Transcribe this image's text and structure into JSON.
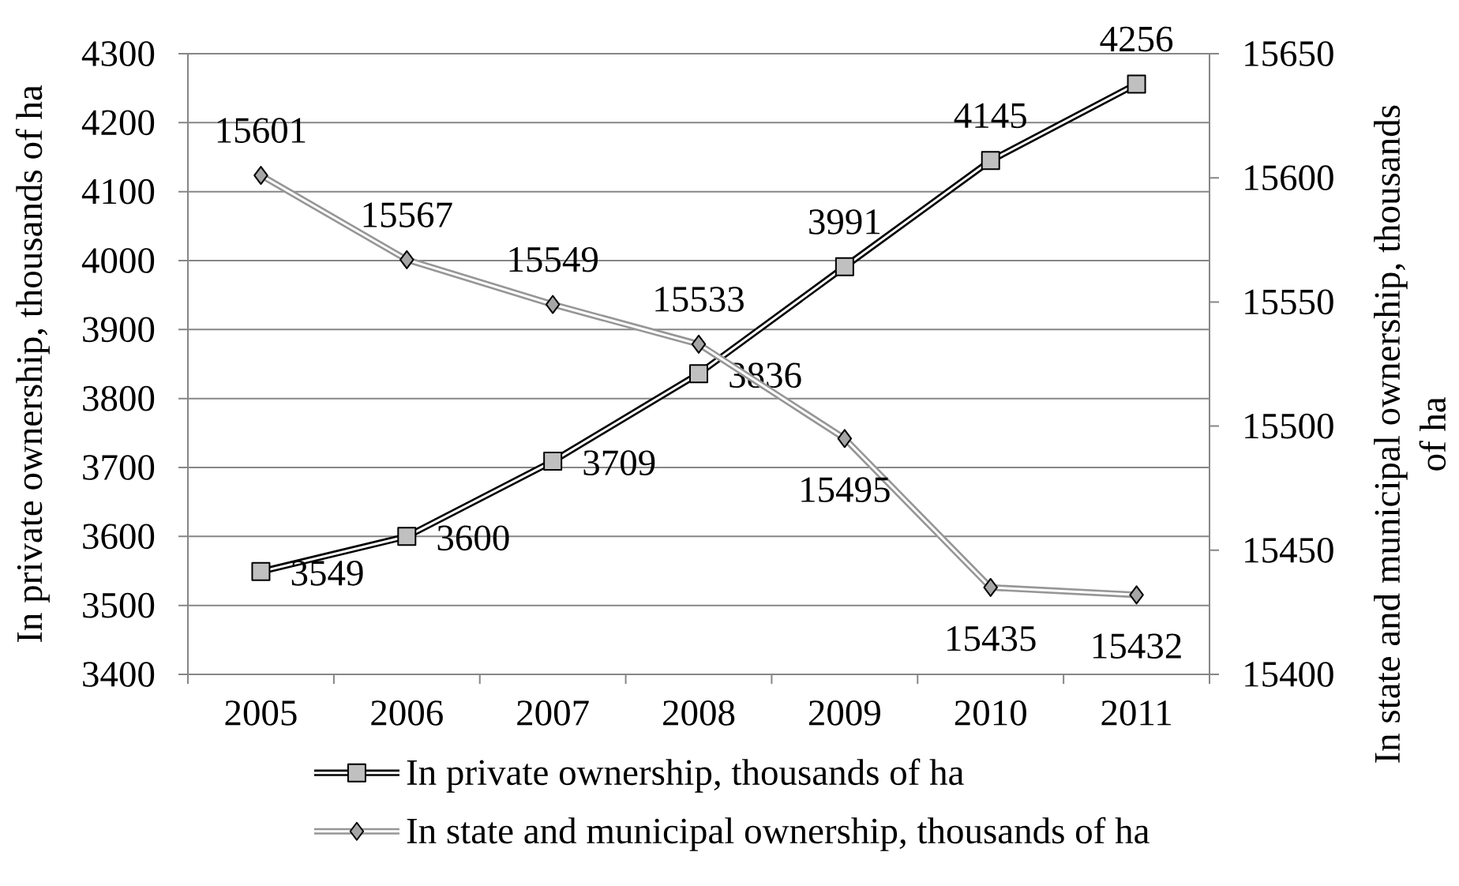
{
  "chart_data": {
    "type": "line",
    "categories": [
      "2005",
      "2006",
      "2007",
      "2008",
      "2009",
      "2010",
      "2011"
    ],
    "ylabel": "In private ownership, thousands of ha",
    "y2label": "In state and municipal ownership, thousands of ha",
    "ylim": [
      3400,
      4300
    ],
    "yticks": [
      3400,
      3500,
      3600,
      3700,
      3800,
      3900,
      4000,
      4100,
      4200,
      4300
    ],
    "y2lim": [
      15400,
      15650
    ],
    "y2ticks": [
      15400,
      15450,
      15500,
      15550,
      15600,
      15650
    ],
    "series": [
      {
        "name": "In private ownership, thousands of ha",
        "color": "#000000",
        "marker": "square",
        "values": [
          3549,
          3600,
          3709,
          3836,
          3991,
          4145,
          4256
        ]
      },
      {
        "name": "In state and municipal ownership, thousands of ha",
        "color": "#969696",
        "marker": "diamond",
        "axis": "y2",
        "values": [
          15601,
          15567,
          15549,
          15533,
          15495,
          15435,
          15432
        ]
      }
    ],
    "data_labels": true,
    "grid": "y",
    "legend": "bottom",
    "line_style": "solid"
  }
}
